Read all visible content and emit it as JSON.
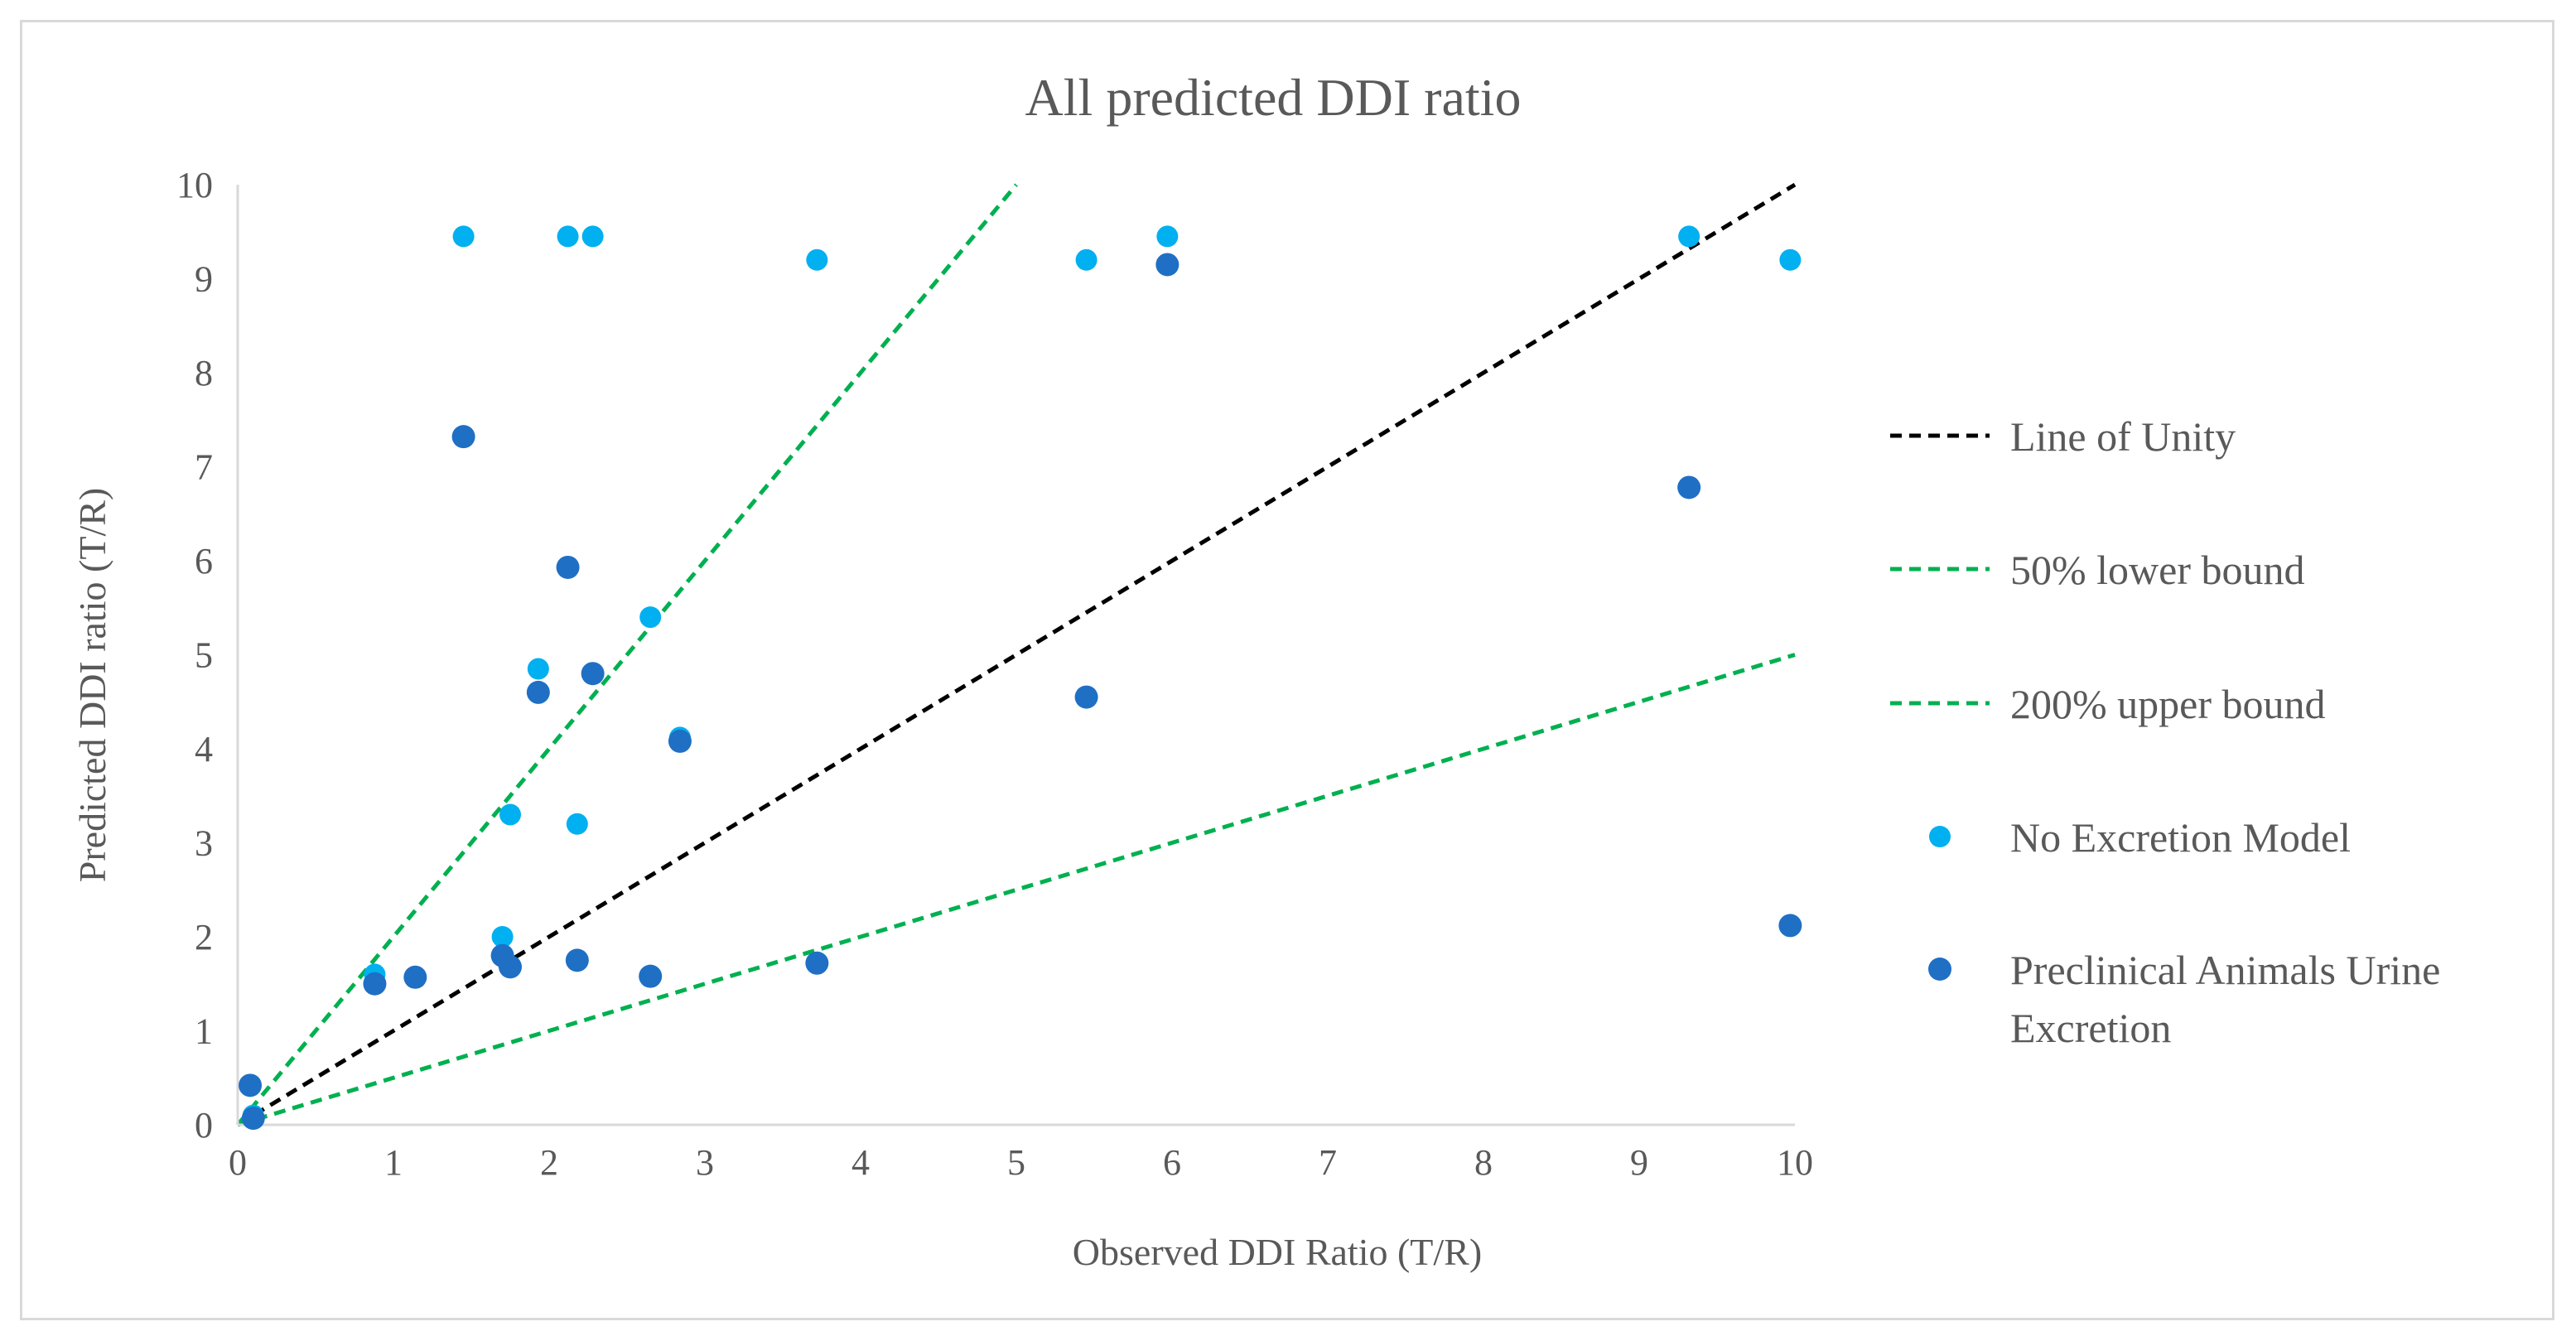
{
  "chart_data": {
    "type": "scatter",
    "title": "All predicted DDI ratio",
    "xlabel": "Observed DDI Ratio (T/R)",
    "ylabel": "Predicted DDI ratio (T/R)",
    "xlim": [
      0,
      10
    ],
    "ylim": [
      0,
      10
    ],
    "x_ticks": [
      "0",
      "1",
      "2",
      "3",
      "4",
      "5",
      "6",
      "7",
      "8",
      "9",
      "10"
    ],
    "y_ticks": [
      "0",
      "1",
      "2",
      "3",
      "4",
      "5",
      "6",
      "7",
      "8",
      "9",
      "10"
    ],
    "grid": false,
    "legend_position": "right",
    "lines": [
      {
        "name": "Line of Unity",
        "color": "#000000",
        "dash": true,
        "x": [
          0,
          10
        ],
        "y": [
          0,
          10
        ]
      },
      {
        "name": "50% lower bound",
        "color": "#00b050",
        "dash": true,
        "x": [
          0,
          5
        ],
        "y": [
          0,
          10
        ]
      },
      {
        "name": "200% upper bound",
        "color": "#00b050",
        "dash": true,
        "x": [
          0,
          10
        ],
        "y": [
          0,
          5
        ]
      }
    ],
    "series": [
      {
        "name": "No Excretion Model",
        "color": "#00b0f0",
        "points": [
          {
            "x": 1.45,
            "y": 9.45
          },
          {
            "x": 2.12,
            "y": 9.45
          },
          {
            "x": 2.28,
            "y": 9.45
          },
          {
            "x": 3.72,
            "y": 9.2
          },
          {
            "x": 5.45,
            "y": 9.2
          },
          {
            "x": 5.97,
            "y": 9.45
          },
          {
            "x": 9.32,
            "y": 9.45
          },
          {
            "x": 9.97,
            "y": 9.2
          },
          {
            "x": 2.65,
            "y": 5.4
          },
          {
            "x": 1.93,
            "y": 4.85
          },
          {
            "x": 2.84,
            "y": 4.12
          },
          {
            "x": 1.75,
            "y": 3.3
          },
          {
            "x": 2.18,
            "y": 3.2
          },
          {
            "x": 1.7,
            "y": 2.0
          },
          {
            "x": 0.88,
            "y": 1.6
          },
          {
            "x": 0.1,
            "y": 0.1
          }
        ]
      },
      {
        "name": "Preclinical Animals Urine Excretion",
        "color": "#1f6fc5",
        "points": [
          {
            "x": 5.97,
            "y": 9.15
          },
          {
            "x": 1.45,
            "y": 7.32
          },
          {
            "x": 9.32,
            "y": 6.78
          },
          {
            "x": 2.12,
            "y": 5.93
          },
          {
            "x": 2.28,
            "y": 4.8
          },
          {
            "x": 1.93,
            "y": 4.6
          },
          {
            "x": 5.45,
            "y": 4.55
          },
          {
            "x": 2.84,
            "y": 4.08
          },
          {
            "x": 9.97,
            "y": 2.12
          },
          {
            "x": 1.7,
            "y": 1.8
          },
          {
            "x": 2.18,
            "y": 1.75
          },
          {
            "x": 1.75,
            "y": 1.68
          },
          {
            "x": 3.72,
            "y": 1.72
          },
          {
            "x": 1.14,
            "y": 1.57
          },
          {
            "x": 2.65,
            "y": 1.58
          },
          {
            "x": 0.88,
            "y": 1.5
          },
          {
            "x": 0.08,
            "y": 0.42
          },
          {
            "x": 0.1,
            "y": 0.07
          }
        ]
      }
    ]
  },
  "legend": {
    "items": [
      {
        "label": "Line of Unity"
      },
      {
        "label": "50% lower bound"
      },
      {
        "label": "200% upper bound"
      },
      {
        "label": "No Excretion Model"
      },
      {
        "label_line1": "Preclinical Animals Urine",
        "label_line2": "Excretion"
      }
    ]
  }
}
